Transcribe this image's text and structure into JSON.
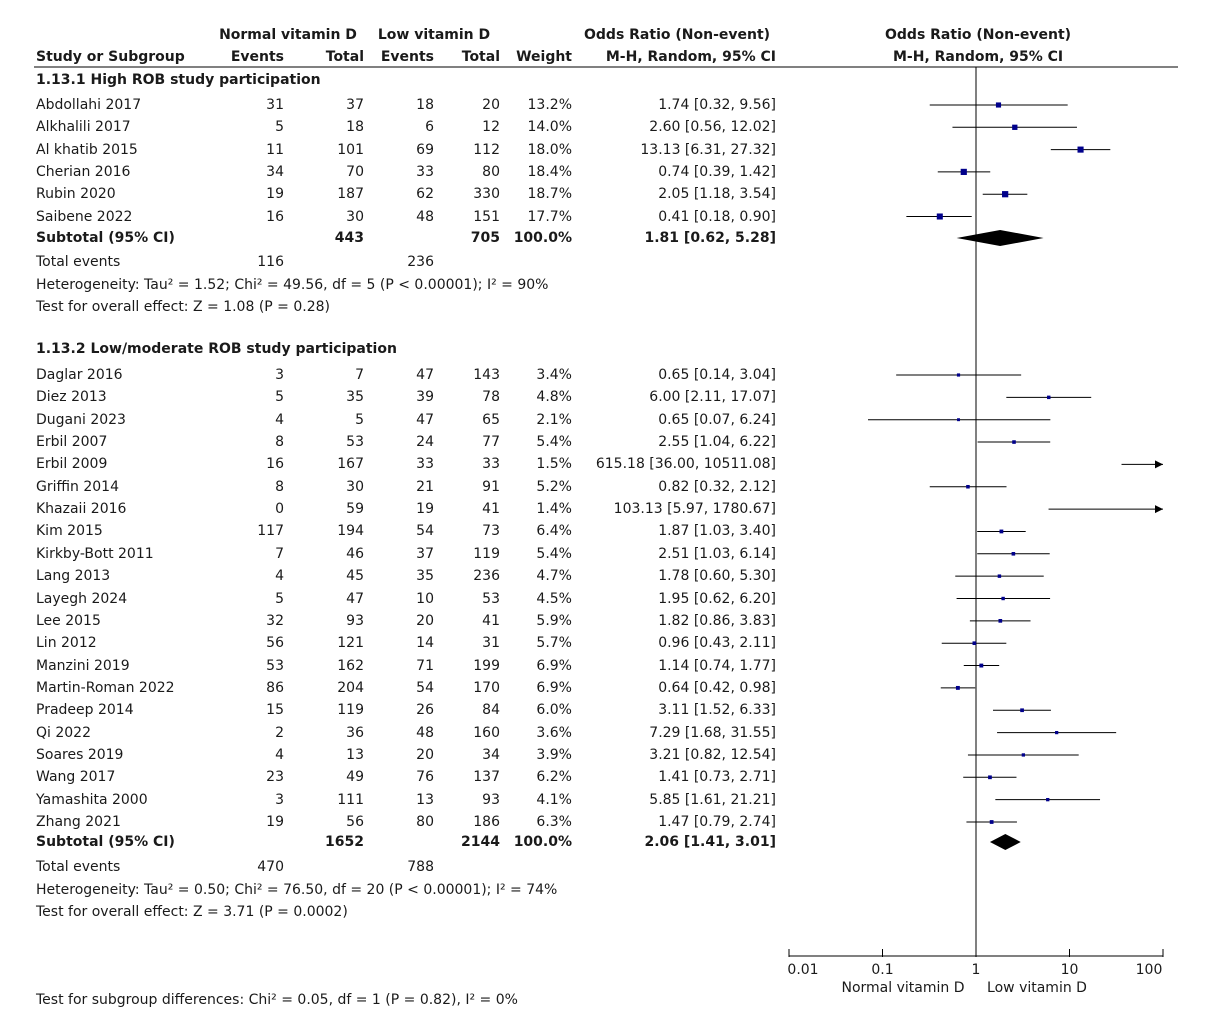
{
  "header": {
    "group1": "Normal vitamin D",
    "group2": "Low vitamin D",
    "or_col": "Odds Ratio (Non-event)",
    "or_col_sub": "M-H, Random, 95% CI",
    "plot_title": "Odds Ratio (Non-event)",
    "plot_sub": "M-H, Random, 95% CI",
    "study": "Study or Subgroup",
    "events": "Events",
    "total": "Total",
    "weight": "Weight"
  },
  "subgroups": [
    {
      "title": "1.13.1 High ROB study participation",
      "studies": [
        {
          "name": "Abdollahi 2017",
          "e1": "31",
          "n1": "37",
          "e2": "18",
          "n2": "20",
          "w": "13.2%",
          "ci": "1.74 [0.32, 9.56]"
        },
        {
          "name": "Alkhalili 2017",
          "e1": "5",
          "n1": "18",
          "e2": "6",
          "n2": "12",
          "w": "14.0%",
          "ci": "2.60 [0.56, 12.02]"
        },
        {
          "name": "Al khatib 2015",
          "e1": "11",
          "n1": "101",
          "e2": "69",
          "n2": "112",
          "w": "18.0%",
          "ci": "13.13 [6.31, 27.32]"
        },
        {
          "name": "Cherian 2016",
          "e1": "34",
          "n1": "70",
          "e2": "33",
          "n2": "80",
          "w": "18.4%",
          "ci": "0.74 [0.39, 1.42]"
        },
        {
          "name": "Rubin 2020",
          "e1": "19",
          "n1": "187",
          "e2": "62",
          "n2": "330",
          "w": "18.7%",
          "ci": "2.05 [1.18, 3.54]"
        },
        {
          "name": "Saibene 2022",
          "e1": "16",
          "n1": "30",
          "e2": "48",
          "n2": "151",
          "w": "17.7%",
          "ci": "0.41 [0.18, 0.90]"
        }
      ],
      "subtotal": {
        "label": "Subtotal (95% CI)",
        "n1": "443",
        "n2": "705",
        "w": "100.0%",
        "ci": "1.81 [0.62, 5.28]"
      },
      "total_events": {
        "label": "Total events",
        "e1": "116",
        "e2": "236"
      },
      "heterogeneity": "Heterogeneity: Tau² = 1.52; Chi² = 49.56, df = 5 (P < 0.00001); I² = 90%",
      "overall": "Test for overall effect: Z = 1.08 (P = 0.28)"
    },
    {
      "title": "1.13.2 Low/moderate ROB study participation",
      "studies": [
        {
          "name": "Daglar 2016",
          "e1": "3",
          "n1": "7",
          "e2": "47",
          "n2": "143",
          "w": "3.4%",
          "ci": "0.65 [0.14, 3.04]"
        },
        {
          "name": "Diez 2013",
          "e1": "5",
          "n1": "35",
          "e2": "39",
          "n2": "78",
          "w": "4.8%",
          "ci": "6.00 [2.11, 17.07]"
        },
        {
          "name": "Dugani 2023",
          "e1": "4",
          "n1": "5",
          "e2": "47",
          "n2": "65",
          "w": "2.1%",
          "ci": "0.65 [0.07, 6.24]"
        },
        {
          "name": "Erbil 2007",
          "e1": "8",
          "n1": "53",
          "e2": "24",
          "n2": "77",
          "w": "5.4%",
          "ci": "2.55 [1.04, 6.22]"
        },
        {
          "name": "Erbil 2009",
          "e1": "16",
          "n1": "167",
          "e2": "33",
          "n2": "33",
          "w": "1.5%",
          "ci": "615.18 [36.00, 10511.08]"
        },
        {
          "name": "Griffin 2014",
          "e1": "8",
          "n1": "30",
          "e2": "21",
          "n2": "91",
          "w": "5.2%",
          "ci": "0.82 [0.32, 2.12]"
        },
        {
          "name": "Khazaii 2016",
          "e1": "0",
          "n1": "59",
          "e2": "19",
          "n2": "41",
          "w": "1.4%",
          "ci": "103.13 [5.97, 1780.67]"
        },
        {
          "name": "Kim 2015",
          "e1": "117",
          "n1": "194",
          "e2": "54",
          "n2": "73",
          "w": "6.4%",
          "ci": "1.87 [1.03, 3.40]"
        },
        {
          "name": "Kirkby-Bott 2011",
          "e1": "7",
          "n1": "46",
          "e2": "37",
          "n2": "119",
          "w": "5.4%",
          "ci": "2.51 [1.03, 6.14]"
        },
        {
          "name": "Lang 2013",
          "e1": "4",
          "n1": "45",
          "e2": "35",
          "n2": "236",
          "w": "4.7%",
          "ci": "1.78 [0.60, 5.30]"
        },
        {
          "name": "Layegh 2024",
          "e1": "5",
          "n1": "47",
          "e2": "10",
          "n2": "53",
          "w": "4.5%",
          "ci": "1.95 [0.62, 6.20]"
        },
        {
          "name": "Lee 2015",
          "e1": "32",
          "n1": "93",
          "e2": "20",
          "n2": "41",
          "w": "5.9%",
          "ci": "1.82 [0.86, 3.83]"
        },
        {
          "name": "Lin 2012",
          "e1": "56",
          "n1": "121",
          "e2": "14",
          "n2": "31",
          "w": "5.7%",
          "ci": "0.96 [0.43, 2.11]"
        },
        {
          "name": "Manzini 2019",
          "e1": "53",
          "n1": "162",
          "e2": "71",
          "n2": "199",
          "w": "6.9%",
          "ci": "1.14 [0.74, 1.77]"
        },
        {
          "name": "Martin-Roman 2022",
          "e1": "86",
          "n1": "204",
          "e2": "54",
          "n2": "170",
          "w": "6.9%",
          "ci": "0.64 [0.42, 0.98]"
        },
        {
          "name": "Pradeep 2014",
          "e1": "15",
          "n1": "119",
          "e2": "26",
          "n2": "84",
          "w": "6.0%",
          "ci": "3.11 [1.52, 6.33]"
        },
        {
          "name": "Qi 2022",
          "e1": "2",
          "n1": "36",
          "e2": "48",
          "n2": "160",
          "w": "3.6%",
          "ci": "7.29 [1.68, 31.55]"
        },
        {
          "name": "Soares 2019",
          "e1": "4",
          "n1": "13",
          "e2": "20",
          "n2": "34",
          "w": "3.9%",
          "ci": "3.21 [0.82, 12.54]"
        },
        {
          "name": "Wang 2017",
          "e1": "23",
          "n1": "49",
          "e2": "76",
          "n2": "137",
          "w": "6.2%",
          "ci": "1.41 [0.73, 2.71]"
        },
        {
          "name": "Yamashita 2000",
          "e1": "3",
          "n1": "111",
          "e2": "13",
          "n2": "93",
          "w": "4.1%",
          "ci": "5.85 [1.61, 21.21]"
        },
        {
          "name": "Zhang 2021",
          "e1": "19",
          "n1": "56",
          "e2": "80",
          "n2": "186",
          "w": "6.3%",
          "ci": "1.47 [0.79, 2.74]"
        }
      ],
      "subtotal": {
        "label": "Subtotal (95% CI)",
        "n1": "1652",
        "n2": "2144",
        "w": "100.0%",
        "ci": "2.06 [1.41, 3.01]"
      },
      "total_events": {
        "label": "Total events",
        "e1": "470",
        "e2": "788"
      },
      "heterogeneity": "Heterogeneity: Tau² = 0.50; Chi² = 76.50, df = 20 (P < 0.00001); I² = 74%",
      "overall": "Test for overall effect: Z = 3.71 (P = 0.0002)"
    }
  ],
  "footer": "Test for subgroup differences: Chi² = 0.05, df = 1 (P = 0.82), I² = 0%",
  "axis": {
    "ticks": [
      "0.01",
      "0.1",
      "1",
      "10",
      "100"
    ],
    "left_label": "Normal vitamin D",
    "right_label": "Low vitamin D"
  },
  "colors": {
    "marker": "#00008b",
    "line": "#000000",
    "diamond": "#000000"
  },
  "chart_data": {
    "type": "scatter",
    "scale": "log",
    "xlim": [
      0.01,
      100
    ],
    "series": [
      {
        "name": "1.13.1 High ROB study participation",
        "points": [
          {
            "study": "Abdollahi 2017",
            "or": 1.74,
            "lo": 0.32,
            "hi": 9.56,
            "weight": 13.2
          },
          {
            "study": "Alkhalili 2017",
            "or": 2.6,
            "lo": 0.56,
            "hi": 12.02,
            "weight": 14.0
          },
          {
            "study": "Al khatib 2015",
            "or": 13.13,
            "lo": 6.31,
            "hi": 27.32,
            "weight": 18.0
          },
          {
            "study": "Cherian 2016",
            "or": 0.74,
            "lo": 0.39,
            "hi": 1.42,
            "weight": 18.4
          },
          {
            "study": "Rubin 2020",
            "or": 2.05,
            "lo": 1.18,
            "hi": 3.54,
            "weight": 18.7
          },
          {
            "study": "Saibene 2022",
            "or": 0.41,
            "lo": 0.18,
            "hi": 0.9,
            "weight": 17.7
          }
        ],
        "pooled": {
          "or": 1.81,
          "lo": 0.62,
          "hi": 5.28
        }
      },
      {
        "name": "1.13.2 Low/moderate ROB study participation",
        "points": [
          {
            "study": "Daglar 2016",
            "or": 0.65,
            "lo": 0.14,
            "hi": 3.04,
            "weight": 3.4
          },
          {
            "study": "Diez 2013",
            "or": 6.0,
            "lo": 2.11,
            "hi": 17.07,
            "weight": 4.8
          },
          {
            "study": "Dugani 2023",
            "or": 0.65,
            "lo": 0.07,
            "hi": 6.24,
            "weight": 2.1
          },
          {
            "study": "Erbil 2007",
            "or": 2.55,
            "lo": 1.04,
            "hi": 6.22,
            "weight": 5.4
          },
          {
            "study": "Erbil 2009",
            "or": 615.18,
            "lo": 36.0,
            "hi": 10511.08,
            "weight": 1.5
          },
          {
            "study": "Griffin 2014",
            "or": 0.82,
            "lo": 0.32,
            "hi": 2.12,
            "weight": 5.2
          },
          {
            "study": "Khazaii 2016",
            "or": 103.13,
            "lo": 5.97,
            "hi": 1780.67,
            "weight": 1.4
          },
          {
            "study": "Kim 2015",
            "or": 1.87,
            "lo": 1.03,
            "hi": 3.4,
            "weight": 6.4
          },
          {
            "study": "Kirkby-Bott 2011",
            "or": 2.51,
            "lo": 1.03,
            "hi": 6.14,
            "weight": 5.4
          },
          {
            "study": "Lang 2013",
            "or": 1.78,
            "lo": 0.6,
            "hi": 5.3,
            "weight": 4.7
          },
          {
            "study": "Layegh 2024",
            "or": 1.95,
            "lo": 0.62,
            "hi": 6.2,
            "weight": 4.5
          },
          {
            "study": "Lee 2015",
            "or": 1.82,
            "lo": 0.86,
            "hi": 3.83,
            "weight": 5.9
          },
          {
            "study": "Lin 2012",
            "or": 0.96,
            "lo": 0.43,
            "hi": 2.11,
            "weight": 5.7
          },
          {
            "study": "Manzini 2019",
            "or": 1.14,
            "lo": 0.74,
            "hi": 1.77,
            "weight": 6.9
          },
          {
            "study": "Martin-Roman 2022",
            "or": 0.64,
            "lo": 0.42,
            "hi": 0.98,
            "weight": 6.9
          },
          {
            "study": "Pradeep 2014",
            "or": 3.11,
            "lo": 1.52,
            "hi": 6.33,
            "weight": 6.0
          },
          {
            "study": "Qi 2022",
            "or": 7.29,
            "lo": 1.68,
            "hi": 31.55,
            "weight": 3.6
          },
          {
            "study": "Soares 2019",
            "or": 3.21,
            "lo": 0.82,
            "hi": 12.54,
            "weight": 3.9
          },
          {
            "study": "Wang 2017",
            "or": 1.41,
            "lo": 0.73,
            "hi": 2.71,
            "weight": 6.2
          },
          {
            "study": "Yamashita 2000",
            "or": 5.85,
            "lo": 1.61,
            "hi": 21.21,
            "weight": 4.1
          },
          {
            "study": "Zhang 2021",
            "or": 1.47,
            "lo": 0.79,
            "hi": 2.74,
            "weight": 6.3
          }
        ],
        "pooled": {
          "or": 2.06,
          "lo": 1.41,
          "hi": 3.01
        }
      }
    ]
  }
}
